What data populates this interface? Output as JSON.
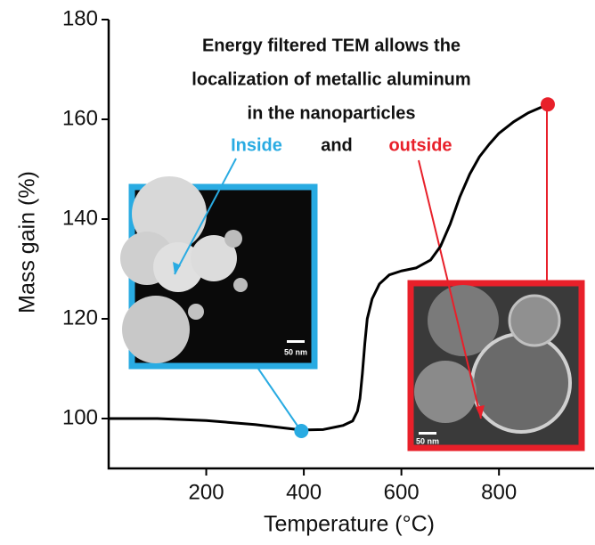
{
  "chart_data": {
    "type": "line",
    "xlabel": "Temperature (°C)",
    "ylabel": "Mass gain (%)",
    "x": [
      0,
      100,
      200,
      300,
      360,
      395,
      440,
      480,
      500,
      510,
      515,
      520,
      525,
      530,
      540,
      555,
      575,
      600,
      630,
      660,
      680,
      700,
      720,
      740,
      760,
      780,
      800,
      830,
      860,
      900
    ],
    "series": [
      {
        "name": "Mass gain",
        "color": "#000000",
        "values": [
          100,
          100,
          99.6,
          98.8,
          98.1,
          97.7,
          97.8,
          98.6,
          99.5,
          101.5,
          104,
          109,
          115,
          120,
          124,
          127,
          128.8,
          129.6,
          130.2,
          131.8,
          134.5,
          139,
          144.5,
          149,
          152.5,
          155,
          157.2,
          159.5,
          161.3,
          163
        ]
      }
    ],
    "highlights": [
      {
        "x": 395,
        "y": 97.5,
        "color": "#29abe2"
      },
      {
        "x": 900,
        "y": 163,
        "color": "#e8202a"
      }
    ],
    "annotation": [
      "Energy filtered TEM allows the",
      "localization of metallic aluminum",
      "in the nanoparticles"
    ],
    "inside_label": "Inside",
    "and_label": "and",
    "outside_label": "outside",
    "scale_bars": [
      "50 nm",
      "50 nm"
    ],
    "xlim": [
      0,
      995
    ],
    "ylim": [
      90,
      180
    ],
    "xticks": [
      200,
      400,
      600,
      800
    ],
    "yticks": [
      100,
      120,
      140,
      160,
      180
    ]
  }
}
